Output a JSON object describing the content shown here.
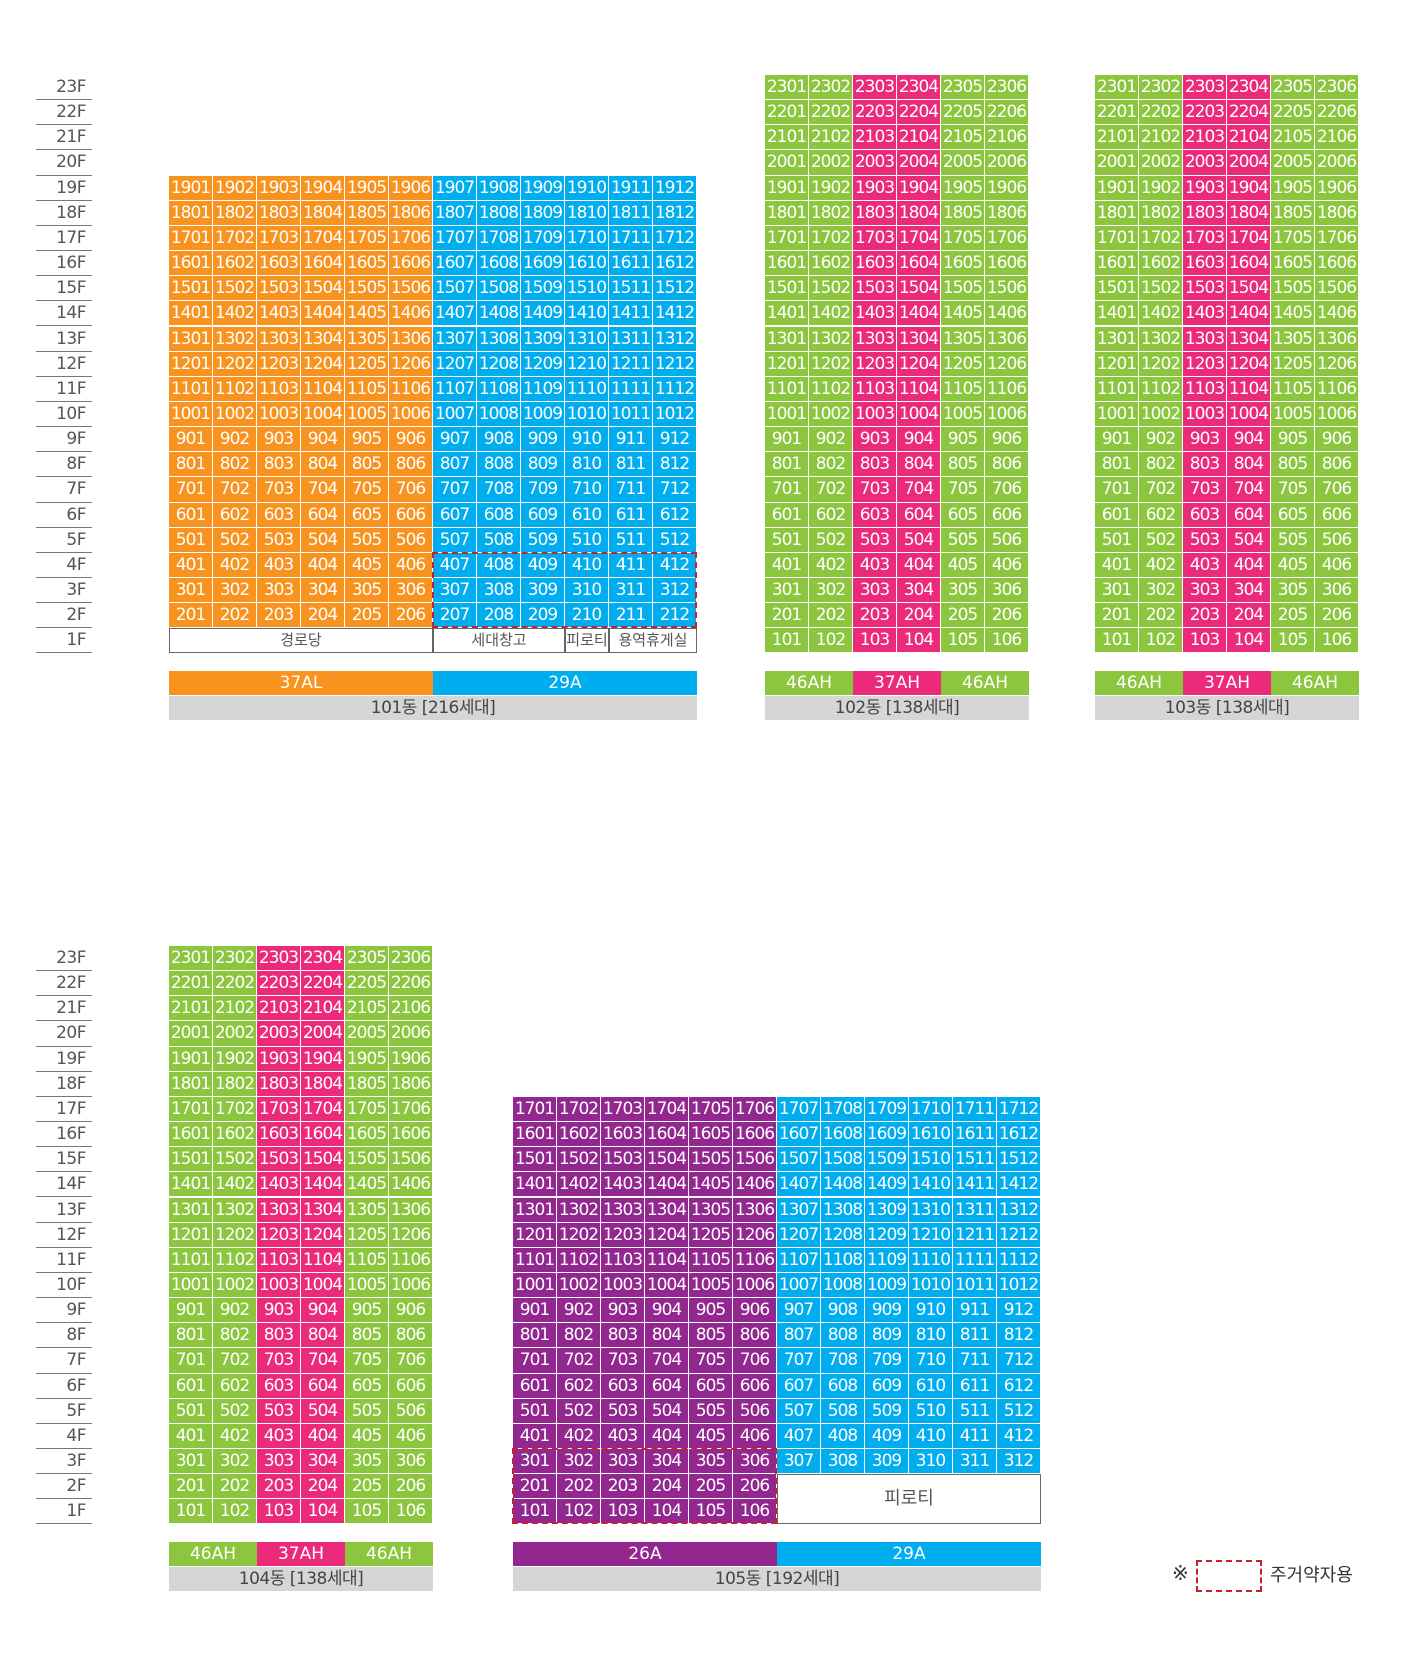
{
  "colors": {
    "orange": "#f7931e",
    "blue": "#00adef",
    "green": "#8cc63f",
    "pink": "#ec2a7b",
    "purple": "#92278f"
  },
  "floor_labels": [
    "23F",
    "22F",
    "21F",
    "20F",
    "19F",
    "18F",
    "17F",
    "16F",
    "15F",
    "14F",
    "13F",
    "12F",
    "11F",
    "10F",
    "9F",
    "8F",
    "7F",
    "6F",
    "5F",
    "4F",
    "3F",
    "2F",
    "1F"
  ],
  "buildings": [
    {
      "id": "101",
      "title": "101동 [216세대]",
      "top_floor": 19,
      "lowest_unit_floor": 2,
      "lines": 12,
      "line_colors": [
        "orange",
        "orange",
        "orange",
        "orange",
        "orange",
        "orange",
        "blue",
        "blue",
        "blue",
        "blue",
        "blue",
        "blue"
      ],
      "ground_facilities": [
        {
          "label": "경로당",
          "lines": 6
        },
        {
          "label": "세대창고",
          "lines": 3
        },
        {
          "label": "피로티",
          "lines": 1
        },
        {
          "label": "용역휴게실",
          "lines": 2
        }
      ],
      "type_bar": [
        {
          "label": "37AL",
          "lines": 6,
          "color": "orange"
        },
        {
          "label": "29A",
          "lines": 6,
          "color": "blue"
        }
      ],
      "reserved_units": [
        "207",
        "208",
        "209",
        "210",
        "211",
        "212",
        "307",
        "308",
        "309",
        "310",
        "311",
        "312",
        "407",
        "408",
        "409",
        "410",
        "411",
        "412"
      ]
    },
    {
      "id": "102",
      "title": "102동 [138세대]",
      "top_floor": 23,
      "lowest_unit_floor": 1,
      "lines": 6,
      "line_colors": [
        "green",
        "green",
        "pink",
        "pink",
        "green",
        "green"
      ],
      "ground_facilities": [],
      "type_bar": [
        {
          "label": "46AH",
          "lines": 2,
          "color": "green"
        },
        {
          "label": "37AH",
          "lines": 2,
          "color": "pink"
        },
        {
          "label": "46AH",
          "lines": 2,
          "color": "green"
        }
      ],
      "reserved_units": []
    },
    {
      "id": "103",
      "title": "103동 [138세대]",
      "top_floor": 23,
      "lowest_unit_floor": 1,
      "lines": 6,
      "line_colors": [
        "green",
        "green",
        "pink",
        "pink",
        "green",
        "green"
      ],
      "ground_facilities": [],
      "type_bar": [
        {
          "label": "46AH",
          "lines": 2,
          "color": "green"
        },
        {
          "label": "37AH",
          "lines": 2,
          "color": "pink"
        },
        {
          "label": "46AH",
          "lines": 2,
          "color": "green"
        }
      ],
      "reserved_units": []
    },
    {
      "id": "104",
      "title": "104동 [138세대]",
      "top_floor": 23,
      "lowest_unit_floor": 1,
      "lines": 6,
      "line_colors": [
        "green",
        "green",
        "pink",
        "pink",
        "green",
        "green"
      ],
      "ground_facilities": [],
      "type_bar": [
        {
          "label": "46AH",
          "lines": 2,
          "color": "green"
        },
        {
          "label": "37AH",
          "lines": 2,
          "color": "pink"
        },
        {
          "label": "46AH",
          "lines": 2,
          "color": "green"
        }
      ],
      "reserved_units": []
    },
    {
      "id": "105",
      "title": "105동 [192세대]",
      "top_floor": 17,
      "lowest_unit_floor": 1,
      "lines": 12,
      "line_colors": [
        "purple",
        "purple",
        "purple",
        "purple",
        "purple",
        "purple",
        "blue",
        "blue",
        "blue",
        "blue",
        "blue",
        "blue"
      ],
      "partial_lines_min_floor": {
        "7": 3,
        "8": 3,
        "9": 3,
        "10": 3,
        "11": 3,
        "12": 3
      },
      "ground_facilities": [
        {
          "label": "피로티",
          "first_line": 7,
          "lines": 6,
          "floors": 2
        }
      ],
      "type_bar": [
        {
          "label": "26A",
          "lines": 6,
          "color": "purple"
        },
        {
          "label": "29A",
          "lines": 6,
          "color": "blue"
        }
      ],
      "reserved_units": [
        "101",
        "102",
        "103",
        "104",
        "105",
        "106",
        "201",
        "202",
        "203",
        "204",
        "205",
        "206",
        "301",
        "302",
        "303",
        "304",
        "305",
        "306"
      ]
    }
  ],
  "legend": {
    "symbol": "※",
    "label": "주거약자용"
  }
}
